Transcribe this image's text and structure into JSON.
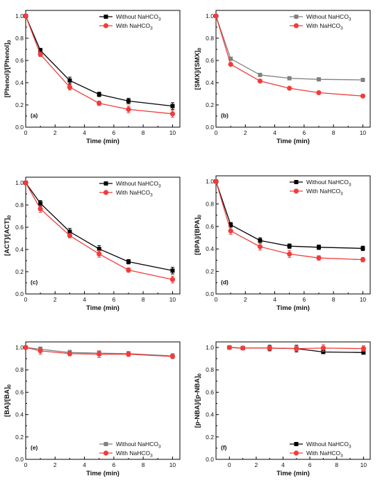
{
  "chart_data": [
    {
      "type": "line",
      "panel": "(a)",
      "xlabel": "Time (min)",
      "ylabel": "[Phenol]/[Phenol]",
      "ylabel_sub": "0",
      "xlim": [
        0,
        10.5
      ],
      "ylim": [
        0.0,
        1.05
      ],
      "xticks": [
        0,
        2,
        4,
        6,
        8,
        10
      ],
      "yticks": [
        0.0,
        0.2,
        0.4,
        0.6,
        0.8,
        1.0
      ],
      "legend_position": "top-right",
      "series": [
        {
          "name": "Without NaHCO",
          "name_sub": "3",
          "color": "#000000",
          "marker": "square",
          "x": [
            0,
            1,
            3,
            5,
            7,
            10
          ],
          "y": [
            1.0,
            0.69,
            0.42,
            0.295,
            0.235,
            0.19
          ],
          "err": [
            0,
            0.02,
            0.03,
            0.02,
            0.025,
            0.03
          ]
        },
        {
          "name": "With NaHCO",
          "name_sub": "3",
          "color": "#f03c3c",
          "marker": "circle",
          "x": [
            0,
            1,
            3,
            5,
            7,
            10
          ],
          "y": [
            1.0,
            0.655,
            0.36,
            0.215,
            0.16,
            0.12
          ],
          "err": [
            0,
            0.02,
            0.025,
            0.02,
            0.03,
            0.03
          ]
        }
      ]
    },
    {
      "type": "line",
      "panel": "(b)",
      "xlabel": "Time (min)",
      "ylabel": "[SMX]/[SMX]",
      "ylabel_sub": "0",
      "xlim": [
        0,
        10.5
      ],
      "ylim": [
        0.0,
        1.05
      ],
      "xticks": [
        0,
        2,
        4,
        6,
        8,
        10
      ],
      "yticks": [
        0.0,
        0.2,
        0.4,
        0.6,
        0.8,
        1.0
      ],
      "legend_position": "top-right",
      "series": [
        {
          "name": "Without NaHCO",
          "name_sub": "3",
          "color": "#808080",
          "marker": "square",
          "x": [
            0,
            1,
            3,
            5,
            7,
            10
          ],
          "y": [
            1.0,
            0.615,
            0.47,
            0.44,
            0.43,
            0.425
          ],
          "err": [
            0,
            0,
            0,
            0,
            0,
            0
          ]
        },
        {
          "name": "With NaHCO",
          "name_sub": "3",
          "color": "#f03c3c",
          "marker": "circle",
          "x": [
            0,
            1,
            3,
            5,
            7,
            10
          ],
          "y": [
            1.0,
            0.565,
            0.415,
            0.35,
            0.31,
            0.28
          ],
          "err": [
            0,
            0,
            0,
            0,
            0,
            0
          ]
        }
      ]
    },
    {
      "type": "line",
      "panel": "(c)",
      "xlabel": "Time (min)",
      "ylabel": "[ACT]/[ACT]",
      "ylabel_sub": "0",
      "xlim": [
        0,
        10.5
      ],
      "ylim": [
        0.0,
        1.05
      ],
      "xticks": [
        0,
        2,
        4,
        6,
        8,
        10
      ],
      "yticks": [
        0.0,
        0.2,
        0.4,
        0.6,
        0.8,
        1.0
      ],
      "legend_position": "top-right",
      "series": [
        {
          "name": "Without NaHCO",
          "name_sub": "3",
          "color": "#000000",
          "marker": "square",
          "x": [
            0,
            1,
            3,
            5,
            7,
            10
          ],
          "y": [
            1.0,
            0.815,
            0.56,
            0.405,
            0.29,
            0.21
          ],
          "err": [
            0,
            0.025,
            0.03,
            0.03,
            0.02,
            0.03
          ]
        },
        {
          "name": "With NaHCO",
          "name_sub": "3",
          "color": "#f03c3c",
          "marker": "circle",
          "x": [
            0,
            1,
            3,
            5,
            7,
            10
          ],
          "y": [
            1.0,
            0.765,
            0.525,
            0.36,
            0.215,
            0.13
          ],
          "err": [
            0,
            0.03,
            0.02,
            0.03,
            0.02,
            0.03
          ]
        }
      ]
    },
    {
      "type": "line",
      "panel": "(d)",
      "xlabel": "Time (min)",
      "ylabel": "[BPA]/[BPA]",
      "ylabel_sub": "0",
      "xlim": [
        0,
        10.5
      ],
      "ylim": [
        0.0,
        1.05
      ],
      "xticks": [
        0,
        2,
        4,
        6,
        8,
        10
      ],
      "yticks": [
        0.0,
        0.2,
        0.4,
        0.6,
        0.8,
        1.0
      ],
      "legend_position": "top-right",
      "series": [
        {
          "name": "Without NaHCO",
          "name_sub": "3",
          "color": "#000000",
          "marker": "square",
          "x": [
            0,
            1,
            3,
            5,
            7,
            10
          ],
          "y": [
            1.0,
            0.615,
            0.475,
            0.425,
            0.415,
            0.405
          ],
          "err": [
            0,
            0.02,
            0.025,
            0.02,
            0.02,
            0.02
          ]
        },
        {
          "name": "With NaHCO",
          "name_sub": "3",
          "color": "#f03c3c",
          "marker": "circle",
          "x": [
            0,
            1,
            3,
            5,
            7,
            10
          ],
          "y": [
            1.0,
            0.56,
            0.42,
            0.355,
            0.32,
            0.305
          ],
          "err": [
            0,
            0.03,
            0.03,
            0.03,
            0.02,
            0.02
          ]
        }
      ]
    },
    {
      "type": "line",
      "panel": "(e)",
      "xlabel": "Time (min)",
      "ylabel": "[BA]/[BA]",
      "ylabel_sub": "0",
      "xlim": [
        0,
        10.5
      ],
      "ylim": [
        0.0,
        1.05
      ],
      "xticks": [
        0,
        2,
        4,
        6,
        8,
        10
      ],
      "yticks": [
        0.0,
        0.2,
        0.4,
        0.6,
        0.8,
        1.0
      ],
      "legend_position": "bottom-right",
      "series": [
        {
          "name": "Without NaHCO",
          "name_sub": "3",
          "color": "#808080",
          "marker": "square",
          "x": [
            0,
            1,
            3,
            5,
            7,
            10
          ],
          "y": [
            1.0,
            0.985,
            0.955,
            0.95,
            0.945,
            0.925
          ],
          "err": [
            0,
            0.02,
            0.02,
            0.02,
            0.02,
            0.02
          ]
        },
        {
          "name": "With NaHCO",
          "name_sub": "3",
          "color": "#f03c3c",
          "marker": "circle",
          "x": [
            0,
            1,
            3,
            5,
            7,
            10
          ],
          "y": [
            1.0,
            0.97,
            0.945,
            0.94,
            0.94,
            0.92
          ],
          "err": [
            0,
            0.03,
            0.02,
            0.03,
            0.02,
            0.02
          ]
        }
      ]
    },
    {
      "type": "line",
      "panel": "(f)",
      "xlabel": "Time (min)",
      "ylabel": "[p-NBA]/[p-NBA]",
      "ylabel_sub": "0",
      "xlim": [
        -1,
        10.5
      ],
      "ylim": [
        0.0,
        1.05
      ],
      "xticks": [
        0,
        2,
        4,
        6,
        8,
        10
      ],
      "yticks": [
        0.0,
        0.2,
        0.4,
        0.6,
        0.8,
        1.0
      ],
      "legend_position": "bottom-right",
      "series": [
        {
          "name": "Without NaHCO",
          "name_sub": "3",
          "color": "#000000",
          "marker": "square",
          "x": [
            0,
            1,
            3,
            5,
            7,
            10
          ],
          "y": [
            1.0,
            0.995,
            0.995,
            0.99,
            0.96,
            0.955
          ],
          "err": [
            0,
            0.015,
            0.025,
            0.03,
            0.015,
            0.015
          ]
        },
        {
          "name": "With NaHCO",
          "name_sub": "3",
          "color": "#f03c3c",
          "marker": "circle",
          "x": [
            0,
            1,
            3,
            5,
            7,
            10
          ],
          "y": [
            1.0,
            0.995,
            0.995,
            0.99,
            0.995,
            0.99
          ],
          "err": [
            0,
            0.015,
            0.02,
            0.025,
            0.03,
            0.025
          ]
        }
      ]
    }
  ]
}
